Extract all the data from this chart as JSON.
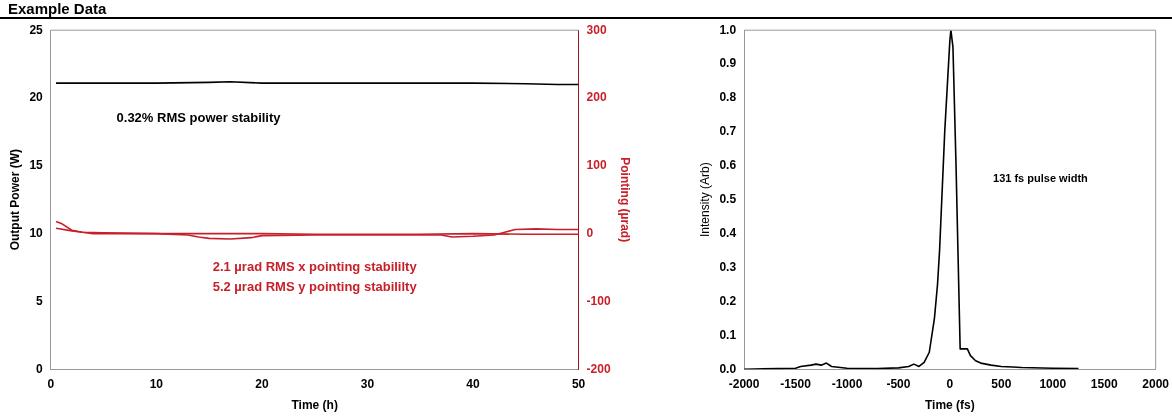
{
  "chart_data": [
    {
      "type": "line",
      "title": "Example Data",
      "xlabel": "Time (h)",
      "ylabel": "Output Power (W)",
      "y2label": "Pointing (µrad)",
      "xlim": [
        0,
        50
      ],
      "xticks": [
        0,
        10,
        20,
        30,
        40,
        50
      ],
      "ylim": [
        0,
        25
      ],
      "yticks": [
        0,
        5,
        10,
        15,
        20,
        25
      ],
      "y2lim": [
        -200,
        300
      ],
      "y2ticks": [
        -200,
        -100,
        0,
        100,
        200,
        300
      ],
      "grid": false,
      "legend": false,
      "marker": "none",
      "line_style": "solid",
      "annotations": [
        "0.32% RMS power stability",
        "2.1 µrad RMS x pointing stabililty",
        "5.2 µrad RMS y pointing stabililty"
      ],
      "series": [
        {
          "color": "#000000",
          "x": [
            0.5,
            5,
            10,
            15,
            17,
            20,
            25,
            30,
            35,
            40,
            45,
            48,
            50
          ],
          "values": [
            21.1,
            21.1,
            21.1,
            21.15,
            21.2,
            21.1,
            21.1,
            21.1,
            21.1,
            21.1,
            21.05,
            21.0,
            21.0
          ]
        },
        {
          "color": "#c8202a",
          "axis": "y2",
          "x": [
            0.5,
            1,
            2,
            3,
            4,
            6,
            10,
            13,
            14,
            15,
            17,
            19,
            20,
            25,
            30,
            37,
            38,
            40,
            42,
            43,
            44,
            46,
            48,
            50
          ],
          "values": [
            18,
            15,
            5,
            2,
            0,
            0,
            0,
            -2,
            -5,
            -7,
            -8,
            -6,
            -3,
            -2,
            -2,
            -2,
            -5,
            -4,
            -2,
            2,
            6,
            7,
            6,
            6
          ]
        },
        {
          "color": "#c8202a",
          "axis": "y2",
          "x": [
            0.5,
            2,
            3,
            5,
            10,
            15,
            20,
            25,
            30,
            35,
            40,
            45,
            50
          ],
          "values": [
            8,
            4,
            2,
            1,
            0,
            0,
            0,
            -1,
            -1,
            -1,
            0,
            -1,
            -1
          ]
        }
      ]
    },
    {
      "type": "line",
      "xlabel": "Time (fs)",
      "ylabel": "Intensity (Arb)",
      "xlim": [
        -2000,
        2000
      ],
      "xticks": [
        -2000,
        -1500,
        -1000,
        -500,
        0,
        500,
        1000,
        1500,
        2000
      ],
      "ylim": [
        0,
        1
      ],
      "yticks": [
        {
          "value": 0,
          "label": "0.0"
        },
        0.1,
        0.2,
        0.3,
        0.4,
        0.5,
        0.6,
        0.7,
        0.8,
        0.9,
        {
          "value": 1,
          "label": "1.0"
        }
      ],
      "grid": false,
      "legend": false,
      "marker": "none",
      "line_style": "solid",
      "annotations": [
        "131 fs pulse width"
      ],
      "series": [
        {
          "color": "#000000",
          "x": [
            -2000,
            -1500,
            -1450,
            -1350,
            -1300,
            -1250,
            -1200,
            -1150,
            -1000,
            -700,
            -500,
            -400,
            -350,
            -300,
            -250,
            -200,
            -150,
            -120,
            -100,
            -50,
            0,
            10,
            30,
            60,
            100,
            170,
            200,
            250,
            300,
            400,
            500,
            700,
            1000,
            1250
          ],
          "values": [
            0,
            0.003,
            0.008,
            0.012,
            0.015,
            0.012,
            0.018,
            0.008,
            0.003,
            0.002,
            0.004,
            0.008,
            0.015,
            0.008,
            0.02,
            0.05,
            0.15,
            0.25,
            0.35,
            0.7,
            0.97,
            1.0,
            0.95,
            0.6,
            0.06,
            0.06,
            0.04,
            0.025,
            0.018,
            0.012,
            0.008,
            0.005,
            0.003,
            0.002
          ]
        }
      ]
    }
  ]
}
